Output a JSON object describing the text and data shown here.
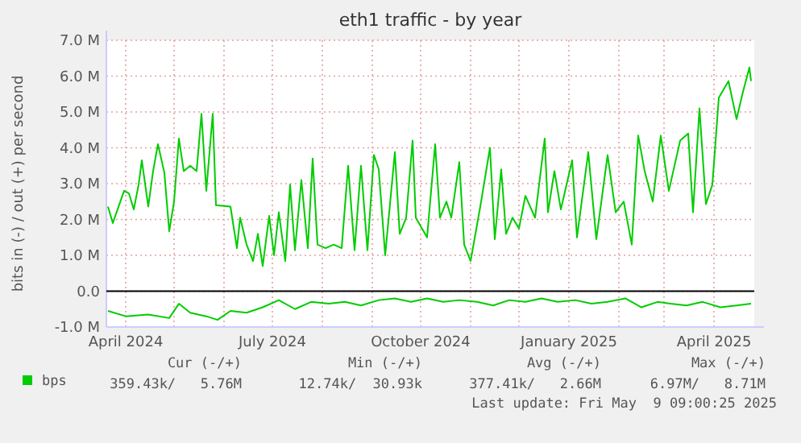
{
  "chart_data": {
    "type": "line",
    "title": "eth1 traffic - by year",
    "ylabel": "bits in (-) / out (+) per second",
    "xlim": [
      "2024-03-20",
      "2025-04-26"
    ],
    "xticks": [
      {
        "value": "2024-04",
        "label": "April 2024"
      },
      {
        "value": "2024-05",
        "label": null
      },
      {
        "value": "2024-06",
        "label": null
      },
      {
        "value": "2024-07",
        "label": "July 2024"
      },
      {
        "value": "2024-08",
        "label": null
      },
      {
        "value": "2024-09",
        "label": null
      },
      {
        "value": "2024-10",
        "label": "October 2024"
      },
      {
        "value": "2024-11",
        "label": null
      },
      {
        "value": "2024-12",
        "label": null
      },
      {
        "value": "2025-01",
        "label": "January 2025"
      },
      {
        "value": "2025-02",
        "label": null
      },
      {
        "value": "2025-03",
        "label": null
      },
      {
        "value": "2025-04",
        "label": "April 2025"
      }
    ],
    "ylim": [
      -1,
      7
    ],
    "yticks": [
      {
        "value": -1,
        "label": "-1.0 M"
      },
      {
        "value": 0,
        "label": "0.0"
      },
      {
        "value": 1,
        "label": "1.0 M"
      },
      {
        "value": 2,
        "label": "2.0 M"
      },
      {
        "value": 3,
        "label": "3.0 M"
      },
      {
        "value": 4,
        "label": "4.0 M"
      },
      {
        "value": 5,
        "label": "5.0 M"
      },
      {
        "value": 6,
        "label": "6.0 M"
      },
      {
        "value": 7,
        "label": "7.0 M"
      }
    ],
    "grid": true,
    "legend": "bottom",
    "ref_lines": [
      {
        "axis": "y",
        "value": 0,
        "color": "#000000"
      }
    ],
    "series": [
      {
        "name": "bps",
        "color": "#00cc00",
        "x": [
          "2024-03-21",
          "2024-03-24",
          "2024-03-31",
          "2024-04-03",
          "2024-04-06",
          "2024-04-09",
          "2024-04-11",
          "2024-04-15",
          "2024-04-18",
          "2024-04-21",
          "2024-04-25",
          "2024-04-28",
          "2024-05-01",
          "2024-05-04",
          "2024-05-07",
          "2024-05-11",
          "2024-05-15",
          "2024-05-18",
          "2024-05-21",
          "2024-05-25",
          "2024-05-27",
          "2024-06-05",
          "2024-06-09",
          "2024-06-11",
          "2024-06-15",
          "2024-06-19",
          "2024-06-22",
          "2024-06-25",
          "2024-06-29",
          "2024-07-02",
          "2024-07-05",
          "2024-07-09",
          "2024-07-12",
          "2024-07-15",
          "2024-07-19",
          "2024-07-23",
          "2024-07-26",
          "2024-07-29",
          "2024-08-03",
          "2024-08-08",
          "2024-08-13",
          "2024-08-17",
          "2024-08-21",
          "2024-08-25",
          "2024-08-29",
          "2024-09-02",
          "2024-09-05",
          "2024-09-09",
          "2024-09-15",
          "2024-09-18",
          "2024-09-22",
          "2024-09-26",
          "2024-09-28",
          "2024-10-05",
          "2024-10-10",
          "2024-10-13",
          "2024-10-17",
          "2024-10-20",
          "2024-10-25",
          "2024-10-28",
          "2024-11-01",
          "2024-11-07",
          "2024-11-13",
          "2024-11-16",
          "2024-11-20",
          "2024-11-23",
          "2024-11-27",
          "2024-12-01",
          "2024-12-05",
          "2024-12-11",
          "2024-12-17",
          "2024-12-19",
          "2024-12-23",
          "2024-12-27",
          "2025-01-03",
          "2025-01-06",
          "2025-01-13",
          "2025-01-18",
          "2025-01-25",
          "2025-01-30",
          "2025-02-04",
          "2025-02-09",
          "2025-02-13",
          "2025-02-17",
          "2025-02-22",
          "2025-02-27",
          "2025-03-04",
          "2025-03-11",
          "2025-03-16",
          "2025-03-19",
          "2025-03-23",
          "2025-03-27",
          "2025-03-31",
          "2025-04-04",
          "2025-04-10",
          "2025-04-15",
          "2025-04-19",
          "2025-04-23",
          "2025-04-24"
        ],
        "values": [
          2.36,
          1.9,
          2.8,
          2.73,
          2.28,
          2.97,
          3.65,
          2.36,
          3.35,
          4.1,
          3.3,
          1.67,
          2.5,
          4.26,
          3.35,
          3.5,
          3.35,
          4.95,
          2.8,
          4.95,
          2.4,
          2.36,
          1.2,
          2.05,
          1.3,
          0.84,
          1.6,
          0.7,
          2.1,
          1.0,
          2.2,
          0.84,
          2.97,
          1.14,
          3.1,
          1.2,
          3.7,
          1.3,
          1.2,
          1.3,
          1.2,
          3.5,
          1.14,
          3.5,
          1.14,
          3.8,
          3.4,
          1.0,
          3.88,
          1.6,
          2.05,
          4.2,
          2.05,
          1.5,
          4.1,
          2.05,
          2.5,
          2.05,
          3.6,
          1.3,
          0.84,
          2.36,
          4.0,
          1.45,
          3.4,
          1.6,
          2.05,
          1.75,
          2.66,
          2.05,
          4.26,
          2.2,
          3.35,
          2.28,
          3.65,
          1.5,
          3.88,
          1.45,
          3.8,
          2.2,
          2.5,
          1.3,
          4.34,
          3.35,
          2.5,
          4.34,
          2.8,
          4.2,
          4.4,
          2.2,
          5.1,
          2.43,
          2.97,
          5.4,
          5.86,
          4.8,
          5.56,
          6.24,
          5.86
        ]
      },
      {
        "color": "#00cc00",
        "x": [
          "2024-03-21",
          "2024-04-01",
          "2024-04-15",
          "2024-04-28",
          "2024-05-04",
          "2024-05-11",
          "2024-05-21",
          "2024-05-28",
          "2024-06-05",
          "2024-06-15",
          "2024-06-25",
          "2024-07-05",
          "2024-07-15",
          "2024-07-25",
          "2024-08-05",
          "2024-08-15",
          "2024-08-25",
          "2024-09-05",
          "2024-09-15",
          "2024-09-25",
          "2024-10-05",
          "2024-10-15",
          "2024-10-25",
          "2024-11-05",
          "2024-11-15",
          "2024-11-25",
          "2024-12-05",
          "2024-12-15",
          "2024-12-25",
          "2025-01-05",
          "2025-01-15",
          "2025-01-25",
          "2025-02-05",
          "2025-02-15",
          "2025-02-25",
          "2025-03-05",
          "2025-03-15",
          "2025-03-25",
          "2025-04-05",
          "2025-04-15",
          "2025-04-24"
        ],
        "values": [
          -0.55,
          -0.7,
          -0.65,
          -0.75,
          -0.35,
          -0.6,
          -0.7,
          -0.8,
          -0.55,
          -0.6,
          -0.45,
          -0.25,
          -0.5,
          -0.3,
          -0.35,
          -0.3,
          -0.4,
          -0.25,
          -0.2,
          -0.3,
          -0.2,
          -0.3,
          -0.25,
          -0.3,
          -0.4,
          -0.25,
          -0.3,
          -0.2,
          -0.3,
          -0.25,
          -0.35,
          -0.3,
          -0.2,
          -0.45,
          -0.3,
          -0.35,
          -0.4,
          -0.3,
          -0.45,
          -0.4,
          -0.35
        ]
      }
    ],
    "annotations": [
      "Cur (-/+)",
      "Min (-/+)",
      "Avg (-/+)",
      "Max (-/+)",
      "359.43k/   5.76M",
      "12.74k/  30.93k",
      "377.41k/   2.66M",
      "6.97M/   8.71M",
      "Last update: Fri May  9 09:00:25 2025"
    ]
  }
}
